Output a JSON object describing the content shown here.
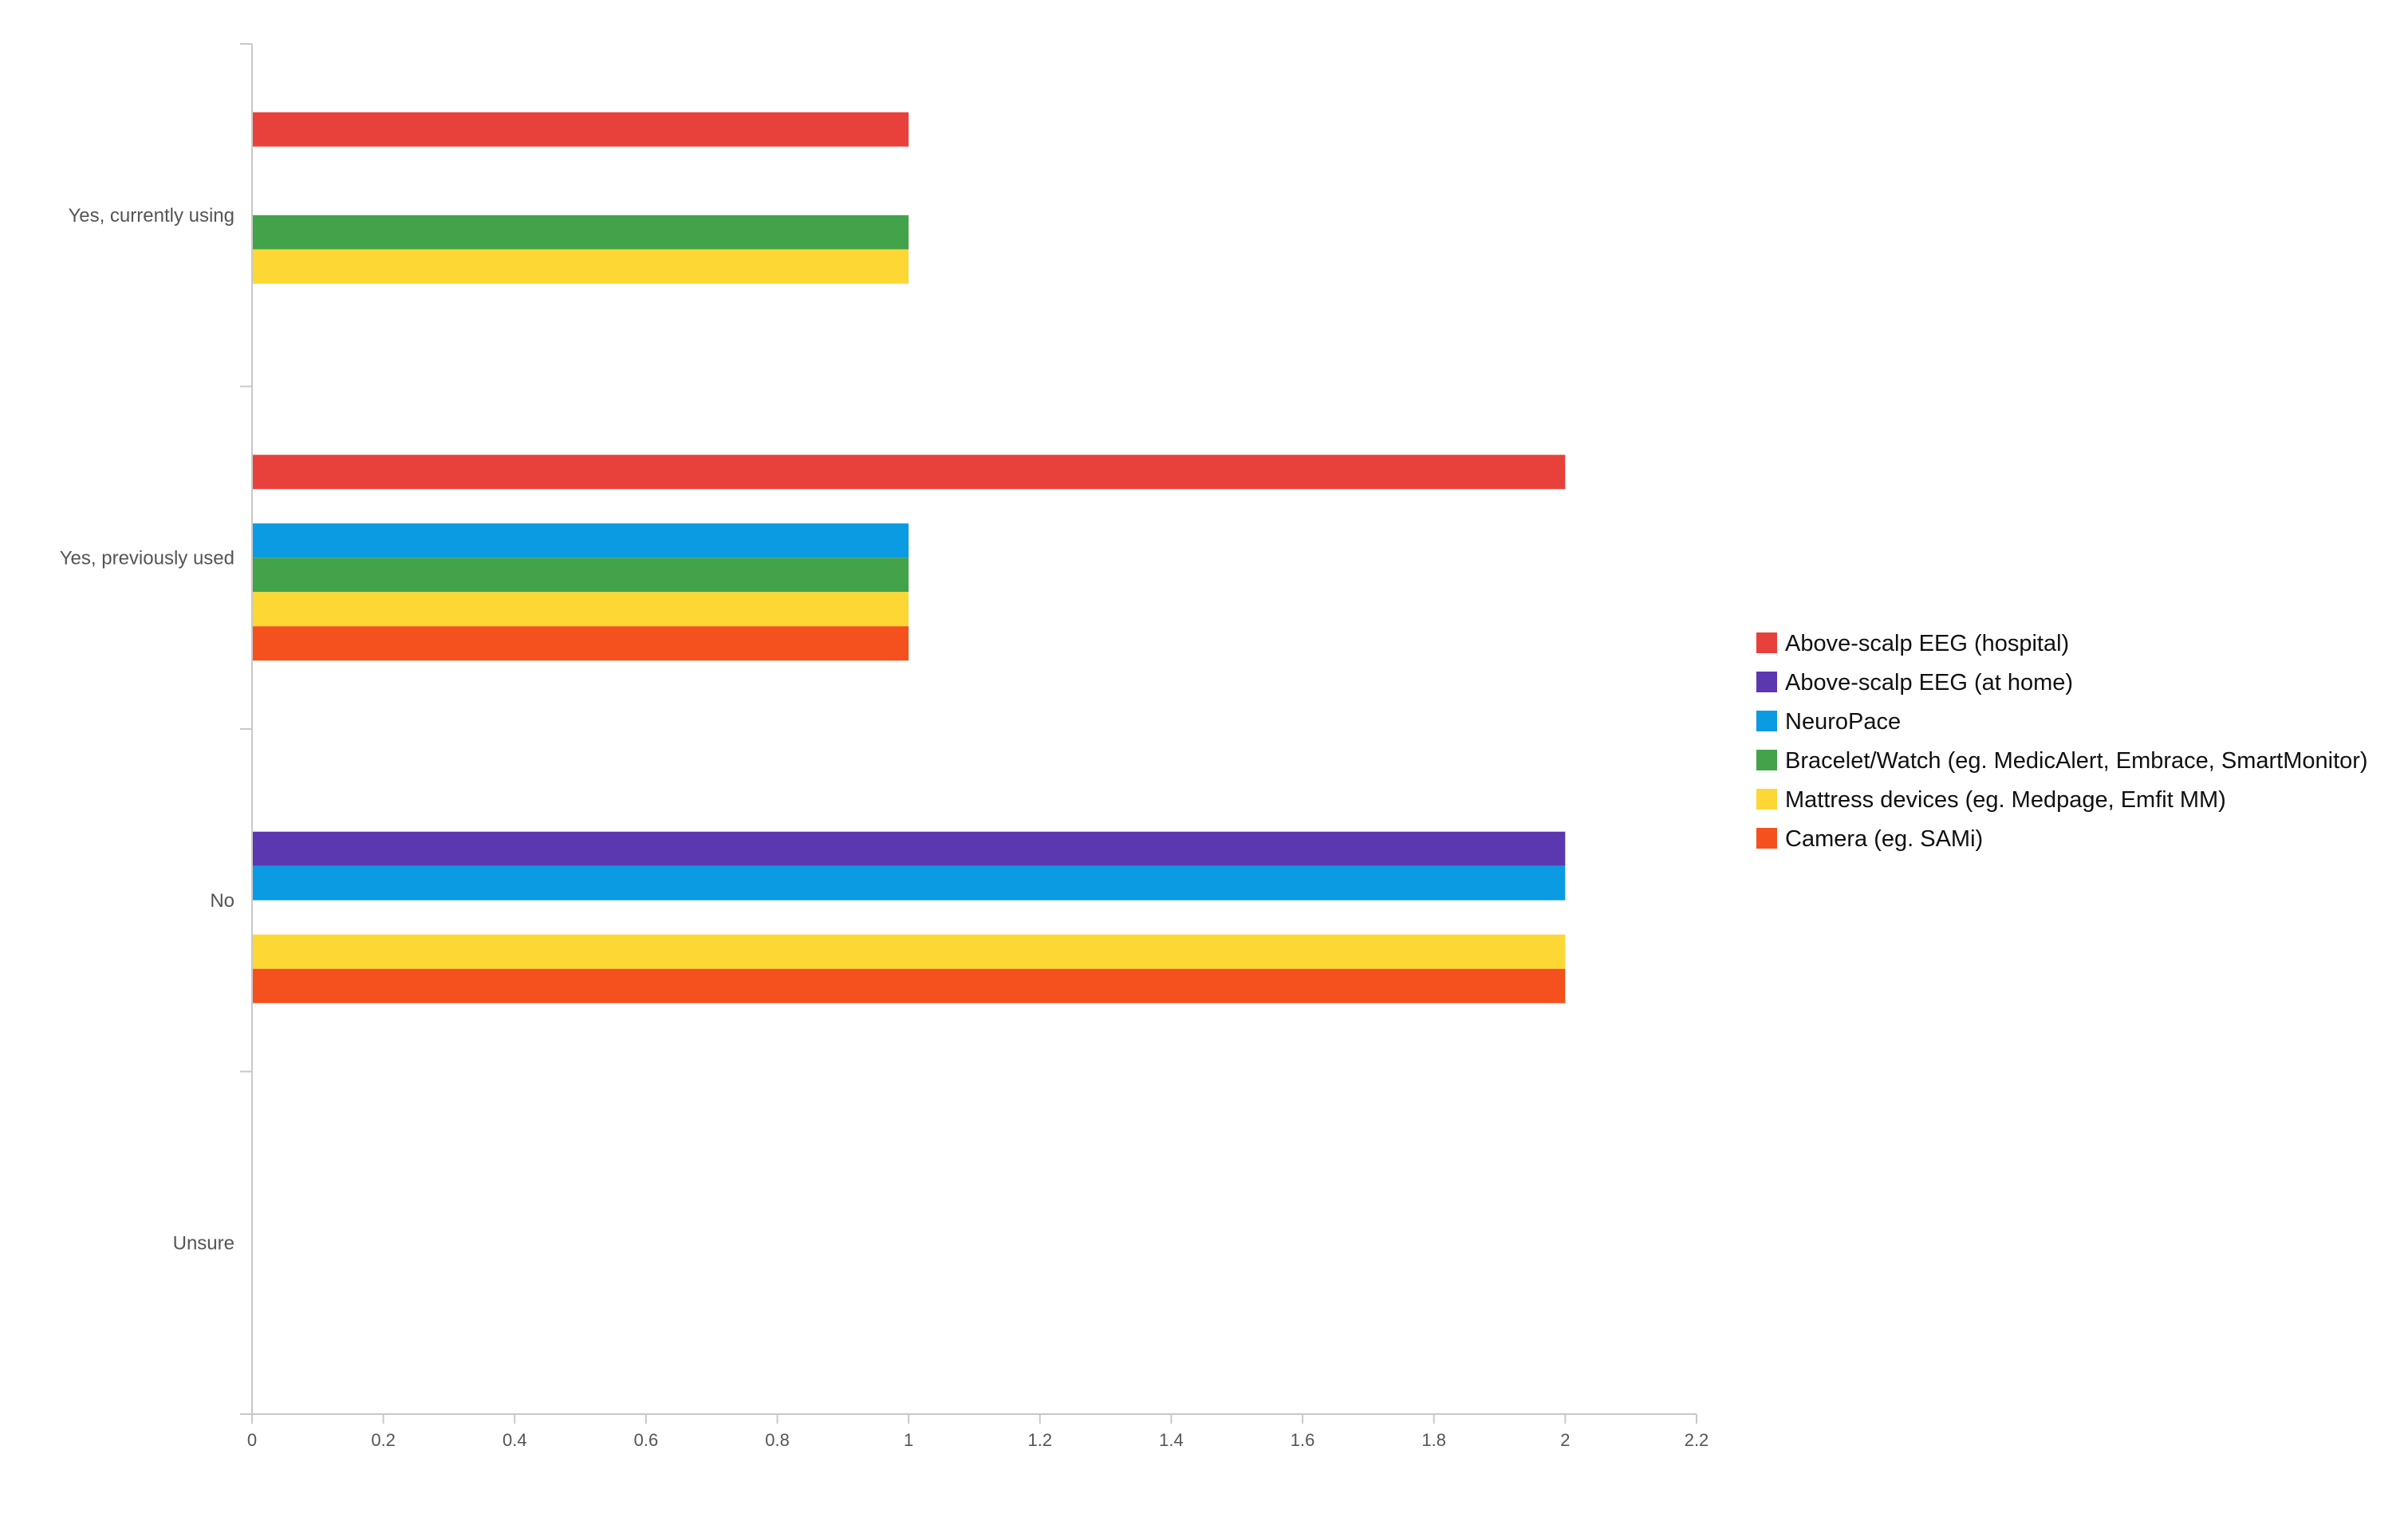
{
  "chart_data": {
    "type": "bar",
    "orientation": "horizontal",
    "categories": [
      "Yes, currently using",
      "Yes, previously used",
      "No",
      "Unsure"
    ],
    "series": [
      {
        "name": "Above-scalp EEG (hospital)",
        "color": "#e8403a",
        "values": [
          1,
          2,
          0,
          0
        ]
      },
      {
        "name": "Above-scalp EEG (at home)",
        "color": "#5b37b0",
        "values": [
          0,
          0,
          2,
          0
        ]
      },
      {
        "name": "NeuroPace",
        "color": "#0a9be3",
        "values": [
          0,
          1,
          2,
          0
        ]
      },
      {
        "name": "Bracelet/Watch (eg. MedicAlert, Embrace, SmartMonitor)",
        "color": "#43a34a",
        "values": [
          1,
          1,
          0,
          0
        ]
      },
      {
        "name": "Mattress devices (eg. Medpage, Emfit MM)",
        "color": "#fdd835",
        "values": [
          1,
          1,
          2,
          0
        ]
      },
      {
        "name": "Camera (eg. SAMi)",
        "color": "#f4511e",
        "values": [
          0,
          1,
          2,
          0
        ]
      }
    ],
    "xticks": [
      "0",
      "0.2",
      "0.4",
      "0.6",
      "0.8",
      "1",
      "1.2",
      "1.4",
      "1.6",
      "1.8",
      "2",
      "2.2"
    ],
    "xlim": [
      0,
      2.2
    ],
    "grid": false,
    "legend_position": "right",
    "title": "",
    "xlabel": "",
    "ylabel": ""
  }
}
